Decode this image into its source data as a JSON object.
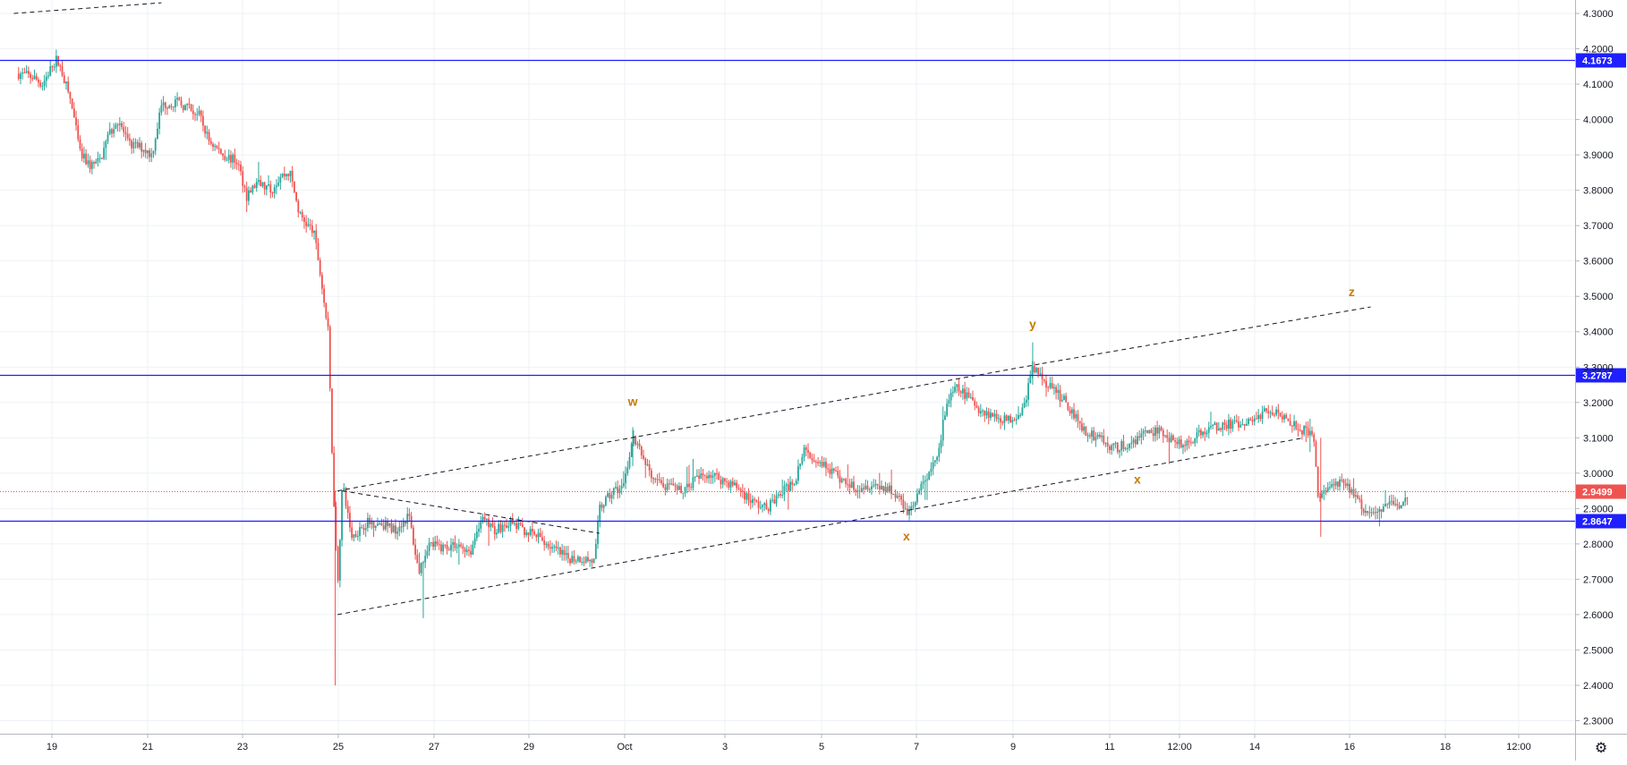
{
  "chart_data": {
    "type": "candlestick",
    "ylim": [
      2.25,
      4.32
    ],
    "y_ticks": [
      "4.3000",
      "4.2000",
      "4.1000",
      "4.0000",
      "3.9000",
      "3.8000",
      "3.7000",
      "3.6000",
      "3.5000",
      "3.4000",
      "3.3000",
      "3.2000",
      "3.1000",
      "3.0000",
      "2.9000",
      "2.8000",
      "2.7000",
      "2.6000",
      "2.5000",
      "2.4000",
      "2.3000"
    ],
    "x_ticks": [
      "19",
      "21",
      "23",
      "25",
      "27",
      "29",
      "Oct",
      "3",
      "5",
      "7",
      "9",
      "11",
      "12:00",
      "14",
      "16",
      "18",
      "12:00"
    ],
    "grid": true,
    "horizontal_levels": [
      {
        "label": "4.1673",
        "value": 4.1673,
        "color": "#1f1fff"
      },
      {
        "label": "3.2787",
        "value": 3.2787,
        "color": "#1f1fff"
      },
      {
        "label": "2.8647",
        "value": 2.8647,
        "color": "#1f1fff"
      }
    ],
    "current_price": {
      "label": "2.9499",
      "value": 2.9499,
      "color": "#ef5350"
    },
    "wave_labels": [
      {
        "text": "w",
        "price": 3.19
      },
      {
        "text": "x",
        "price": 2.81
      },
      {
        "text": "y",
        "price": 3.41
      },
      {
        "text": "x",
        "price": 2.97
      },
      {
        "text": "z",
        "price": 3.5
      }
    ],
    "up_color": "#26a69a",
    "down_color": "#ef5350",
    "close_path": [
      [
        18.3,
        4.13
      ],
      [
        18.6,
        4.12
      ],
      [
        18.8,
        4.1
      ],
      [
        19.0,
        4.15
      ],
      [
        19.1,
        4.17
      ],
      [
        19.2,
        4.14
      ],
      [
        19.4,
        4.05
      ],
      [
        19.6,
        3.9
      ],
      [
        19.8,
        3.87
      ],
      [
        20.0,
        3.88
      ],
      [
        20.2,
        3.96
      ],
      [
        20.4,
        4.0
      ],
      [
        20.6,
        3.93
      ],
      [
        20.9,
        3.92
      ],
      [
        21.1,
        3.9
      ],
      [
        21.3,
        4.04
      ],
      [
        21.6,
        4.05
      ],
      [
        21.9,
        4.03
      ],
      [
        22.1,
        4.01
      ],
      [
        22.3,
        3.94
      ],
      [
        22.6,
        3.9
      ],
      [
        22.9,
        3.88
      ],
      [
        23.1,
        3.78
      ],
      [
        23.3,
        3.82
      ],
      [
        23.6,
        3.8
      ],
      [
        23.8,
        3.84
      ],
      [
        24.0,
        3.85
      ],
      [
        24.2,
        3.73
      ],
      [
        24.5,
        3.68
      ],
      [
        24.6,
        3.6
      ],
      [
        24.8,
        3.4
      ],
      [
        24.9,
        3.0
      ],
      [
        25.0,
        2.68
      ],
      [
        25.1,
        2.97
      ],
      [
        25.3,
        2.82
      ],
      [
        25.6,
        2.86
      ],
      [
        25.9,
        2.86
      ],
      [
        26.2,
        2.84
      ],
      [
        26.5,
        2.88
      ],
      [
        26.7,
        2.72
      ],
      [
        26.9,
        2.8
      ],
      [
        27.2,
        2.79
      ],
      [
        27.5,
        2.8
      ],
      [
        27.8,
        2.78
      ],
      [
        28.0,
        2.87
      ],
      [
        28.3,
        2.84
      ],
      [
        28.6,
        2.86
      ],
      [
        28.9,
        2.84
      ],
      [
        29.2,
        2.82
      ],
      [
        29.5,
        2.79
      ],
      [
        29.8,
        2.76
      ],
      [
        30.1,
        2.76
      ],
      [
        30.4,
        2.75
      ],
      [
        30.5,
        2.9
      ],
      [
        30.8,
        2.95
      ],
      [
        31.0,
        2.96
      ],
      [
        31.2,
        3.1
      ],
      [
        31.4,
        3.05
      ],
      [
        31.6,
        2.98
      ],
      [
        31.9,
        2.96
      ],
      [
        32.2,
        2.95
      ],
      [
        32.5,
        2.98
      ],
      [
        32.8,
        3.0
      ],
      [
        33.1,
        2.98
      ],
      [
        33.4,
        2.96
      ],
      [
        33.7,
        2.92
      ],
      [
        34.0,
        2.9
      ],
      [
        34.3,
        2.94
      ],
      [
        34.6,
        2.98
      ],
      [
        34.8,
        3.06
      ],
      [
        35.1,
        3.04
      ],
      [
        35.4,
        3.0
      ],
      [
        35.6,
        2.98
      ],
      [
        35.9,
        2.96
      ],
      [
        36.2,
        2.97
      ],
      [
        36.5,
        2.96
      ],
      [
        36.8,
        2.93
      ],
      [
        37.0,
        2.89
      ],
      [
        37.3,
        2.97
      ],
      [
        37.6,
        3.05
      ],
      [
        37.8,
        3.2
      ],
      [
        38.0,
        3.24
      ],
      [
        38.2,
        3.22
      ],
      [
        38.5,
        3.18
      ],
      [
        38.8,
        3.16
      ],
      [
        39.1,
        3.15
      ],
      [
        39.4,
        3.18
      ],
      [
        39.6,
        3.3
      ],
      [
        39.8,
        3.27
      ],
      [
        40.0,
        3.24
      ],
      [
        40.3,
        3.2
      ],
      [
        40.5,
        3.16
      ],
      [
        40.7,
        3.12
      ],
      [
        41.0,
        3.1
      ],
      [
        41.3,
        3.07
      ],
      [
        41.6,
        3.08
      ],
      [
        41.9,
        3.11
      ],
      [
        42.2,
        3.12
      ],
      [
        42.5,
        3.1
      ],
      [
        42.8,
        3.08
      ],
      [
        43.1,
        3.11
      ],
      [
        43.4,
        3.13
      ],
      [
        43.7,
        3.14
      ],
      [
        44.0,
        3.13
      ],
      [
        44.3,
        3.16
      ],
      [
        44.6,
        3.18
      ],
      [
        44.8,
        3.17
      ],
      [
        45.1,
        3.14
      ],
      [
        45.3,
        3.12
      ],
      [
        45.5,
        3.1
      ],
      [
        45.6,
        2.93
      ],
      [
        45.8,
        2.96
      ],
      [
        46.1,
        2.97
      ],
      [
        46.3,
        2.95
      ],
      [
        46.6,
        2.88
      ],
      [
        46.9,
        2.9
      ],
      [
        47.2,
        2.92
      ],
      [
        47.4,
        2.91
      ],
      [
        47.5,
        2.95
      ]
    ]
  }
}
